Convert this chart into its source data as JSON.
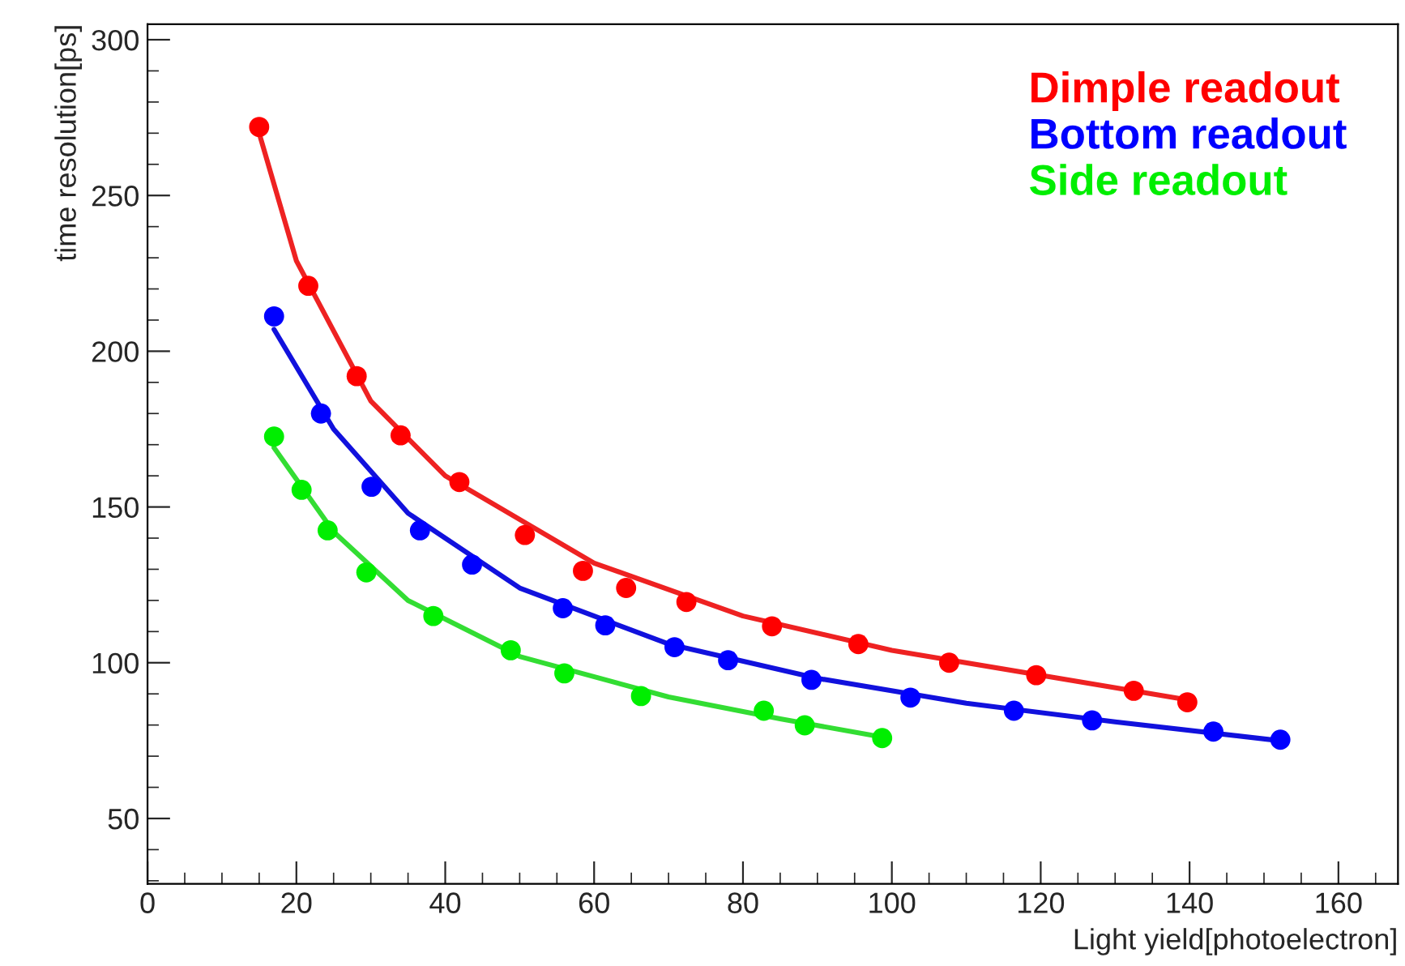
{
  "chart_data": {
    "type": "scatter",
    "xlabel": "Light yield[photoelectron]",
    "ylabel": "time resolution[ps]",
    "xlim": [
      0,
      168
    ],
    "xticks": [
      0,
      20,
      40,
      60,
      80,
      100,
      120,
      140,
      160
    ],
    "ylim": [
      29,
      305
    ],
    "yticks": [
      50,
      100,
      150,
      200,
      250,
      300
    ],
    "grid": false,
    "legend": "top right",
    "marker": "circle",
    "series": [
      {
        "name": "Dimple readout",
        "color": "#ff0000",
        "x": [
          15.0,
          21.6,
          28.1,
          34.0,
          41.9,
          50.7,
          58.5,
          64.3,
          72.4,
          83.9,
          95.5,
          107.7,
          119.4,
          132.5,
          139.7
        ],
        "values": [
          272,
          221,
          192,
          173,
          158,
          141,
          129.5,
          124,
          119.5,
          111.7,
          106,
          100,
          96,
          91,
          87.3
        ]
      },
      {
        "name": "Bottom readout",
        "color": "#0000ff",
        "x": [
          17.0,
          23.3,
          30.1,
          36.6,
          43.6,
          55.8,
          61.5,
          70.8,
          78.0,
          89.2,
          102.5,
          116.4,
          126.9,
          143.2,
          152.2
        ],
        "values": [
          211.2,
          180,
          156.5,
          142.5,
          131.5,
          117.5,
          112,
          105,
          100.8,
          94.5,
          88.8,
          84.6,
          81.5,
          77.9,
          75.3
        ]
      },
      {
        "name": "Side readout",
        "color": "#00ee00",
        "x": [
          17.0,
          20.7,
          24.2,
          29.4,
          38.4,
          48.8,
          56.0,
          66.3,
          82.8,
          88.3,
          98.7
        ],
        "values": [
          172.6,
          155.5,
          142.5,
          129,
          115,
          104,
          96.6,
          89.3,
          84.6,
          79.9,
          75.8
        ]
      },
      {
        "type": "line",
        "color": "#ee2222",
        "marker": "none",
        "x": [
          15,
          20,
          30,
          40,
          60,
          80,
          100,
          120,
          140
        ],
        "values": [
          270,
          229,
          184,
          160,
          132,
          115,
          104,
          96,
          88
        ]
      },
      {
        "type": "line",
        "color": "#1111dd",
        "marker": "none",
        "x": [
          17,
          25,
          35,
          50,
          70,
          90,
          110,
          130,
          152
        ],
        "values": [
          207,
          175,
          148,
          124,
          106,
          95,
          87,
          81,
          75
        ]
      },
      {
        "type": "line",
        "color": "#33dd33",
        "marker": "none",
        "x": [
          17,
          25,
          35,
          50,
          70,
          85,
          99
        ],
        "values": [
          169,
          142,
          120,
          102,
          89,
          82,
          76
        ]
      }
    ]
  }
}
